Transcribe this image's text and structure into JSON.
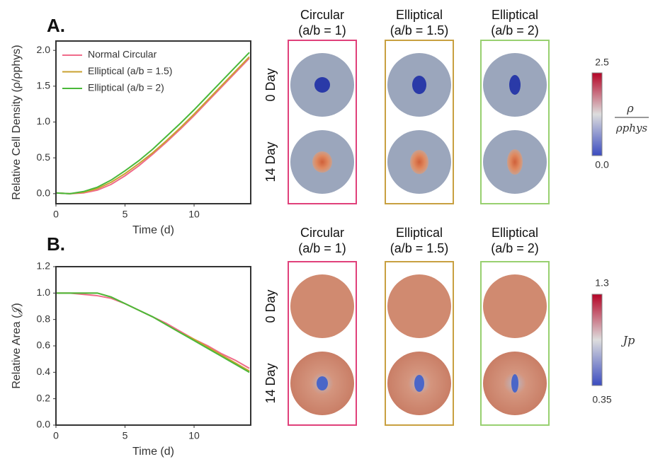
{
  "chart_data": [
    {
      "type": "line",
      "panel_label": "A.",
      "xlabel": "Time (d)",
      "ylabel": "Relative Cell Density (ρ/ρphys)",
      "x": [
        0,
        1,
        2,
        3,
        4,
        5,
        6,
        7,
        8,
        9,
        10,
        11,
        12,
        13,
        14
      ],
      "xlim": [
        0,
        14.1
      ],
      "xticks": [
        0,
        5,
        10
      ],
      "ylim": [
        -0.14,
        2.13
      ],
      "yticks": [
        {
          "value": 0,
          "label": "0.0"
        },
        {
          "value": 0.5,
          "label": "0.5"
        },
        {
          "value": 1,
          "label": "1.0"
        },
        {
          "value": 1.5,
          "label": "1.5"
        },
        {
          "value": 2,
          "label": "2.0"
        }
      ],
      "legend": "upper left",
      "series": [
        {
          "name": "Normal Circular",
          "color": "#f06b8a",
          "values": [
            0.01,
            0.0,
            0.01,
            0.05,
            0.13,
            0.25,
            0.39,
            0.55,
            0.72,
            0.9,
            1.09,
            1.29,
            1.49,
            1.69,
            1.89
          ]
        },
        {
          "name": "Elliptical (a/b = 1.5)",
          "color": "#c9a230",
          "values": [
            0.01,
            0.0,
            0.02,
            0.07,
            0.16,
            0.28,
            0.42,
            0.57,
            0.74,
            0.92,
            1.11,
            1.31,
            1.51,
            1.71,
            1.91
          ]
        },
        {
          "name": "Elliptical (a/b = 2)",
          "color": "#4ab83a",
          "values": [
            0.01,
            0.0,
            0.03,
            0.09,
            0.19,
            0.32,
            0.46,
            0.62,
            0.8,
            0.98,
            1.17,
            1.37,
            1.57,
            1.77,
            1.97
          ]
        }
      ]
    },
    {
      "type": "line",
      "panel_label": "B.",
      "xlabel": "Time (d)",
      "ylabel": "Relative Area (𝒥)",
      "x": [
        0,
        1,
        2,
        3,
        4,
        5,
        6,
        7,
        8,
        9,
        10,
        11,
        12,
        13,
        14
      ],
      "xlim": [
        0,
        14.1
      ],
      "xticks": [
        0,
        5,
        10
      ],
      "ylim": [
        0,
        1.2
      ],
      "yticks": [
        {
          "value": 0,
          "label": "0.0"
        },
        {
          "value": 0.2,
          "label": "0.2"
        },
        {
          "value": 0.4,
          "label": "0.4"
        },
        {
          "value": 0.6,
          "label": "0.6"
        },
        {
          "value": 0.8,
          "label": "0.8"
        },
        {
          "value": 1,
          "label": "1.0"
        },
        {
          "value": 1.2,
          "label": "1.2"
        }
      ],
      "series": [
        {
          "name": "Normal Circular",
          "color": "#f06b8a",
          "values": [
            1.0,
            1.0,
            0.99,
            0.98,
            0.96,
            0.92,
            0.87,
            0.82,
            0.77,
            0.71,
            0.65,
            0.6,
            0.54,
            0.49,
            0.43
          ]
        },
        {
          "name": "Elliptical (a/b = 1.5)",
          "color": "#c9a230",
          "values": [
            1.0,
            1.0,
            1.0,
            1.0,
            0.97,
            0.92,
            0.87,
            0.82,
            0.76,
            0.7,
            0.65,
            0.59,
            0.53,
            0.47,
            0.41
          ]
        },
        {
          "name": "Elliptical (a/b = 2)",
          "color": "#4ab83a",
          "values": [
            1.0,
            1.0,
            1.0,
            1.0,
            0.97,
            0.92,
            0.87,
            0.82,
            0.76,
            0.7,
            0.64,
            0.58,
            0.52,
            0.46,
            0.4
          ]
        }
      ]
    }
  ],
  "images": {
    "columns": [
      [
        "Circular",
        "(a/b = 1)"
      ],
      [
        "Elliptical",
        "(a/b = 1.5)"
      ],
      [
        "Elliptical",
        "(a/b = 2)"
      ]
    ],
    "rows": [
      "0 Day",
      "14 Day"
    ],
    "colorbar_a": {
      "max": "2.5",
      "min": "0.0",
      "numerator": "ρ",
      "denominator": "ρphys"
    },
    "colorbar_b": {
      "max": "1.3",
      "min": "0.35",
      "symbol": "Jp"
    }
  }
}
